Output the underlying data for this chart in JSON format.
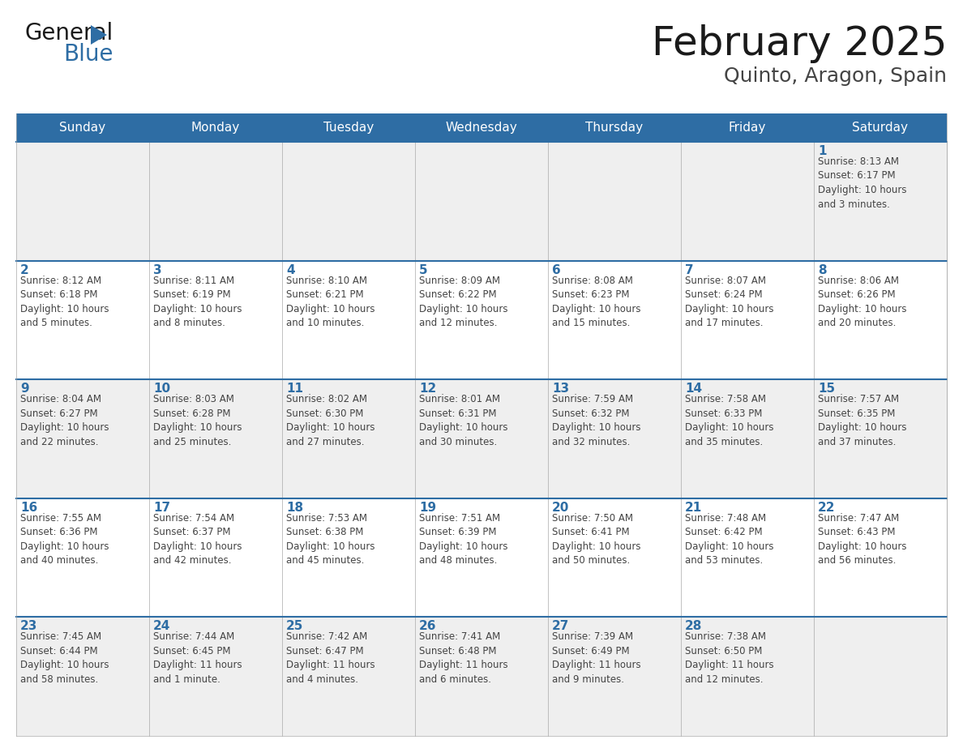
{
  "title": "February 2025",
  "subtitle": "Quinto, Aragon, Spain",
  "header_bg": "#2E6DA4",
  "header_text": "#FFFFFF",
  "cell_bg_odd": "#EFEFEF",
  "cell_bg_even": "#FFFFFF",
  "border_color": "#2E6DA4",
  "cell_border_color": "#AAAAAA",
  "day_names": [
    "Sunday",
    "Monday",
    "Tuesday",
    "Wednesday",
    "Thursday",
    "Friday",
    "Saturday"
  ],
  "title_color": "#1A1A1A",
  "subtitle_color": "#444444",
  "day_number_color": "#2E6DA4",
  "cell_text_color": "#444444",
  "logo_general_color": "#1A1A1A",
  "logo_blue_color": "#2E6DA4",
  "logo_triangle_color": "#2E6DA4",
  "weeks": [
    [
      {
        "day": null,
        "text": ""
      },
      {
        "day": null,
        "text": ""
      },
      {
        "day": null,
        "text": ""
      },
      {
        "day": null,
        "text": ""
      },
      {
        "day": null,
        "text": ""
      },
      {
        "day": null,
        "text": ""
      },
      {
        "day": 1,
        "text": "Sunrise: 8:13 AM\nSunset: 6:17 PM\nDaylight: 10 hours\nand 3 minutes."
      }
    ],
    [
      {
        "day": 2,
        "text": "Sunrise: 8:12 AM\nSunset: 6:18 PM\nDaylight: 10 hours\nand 5 minutes."
      },
      {
        "day": 3,
        "text": "Sunrise: 8:11 AM\nSunset: 6:19 PM\nDaylight: 10 hours\nand 8 minutes."
      },
      {
        "day": 4,
        "text": "Sunrise: 8:10 AM\nSunset: 6:21 PM\nDaylight: 10 hours\nand 10 minutes."
      },
      {
        "day": 5,
        "text": "Sunrise: 8:09 AM\nSunset: 6:22 PM\nDaylight: 10 hours\nand 12 minutes."
      },
      {
        "day": 6,
        "text": "Sunrise: 8:08 AM\nSunset: 6:23 PM\nDaylight: 10 hours\nand 15 minutes."
      },
      {
        "day": 7,
        "text": "Sunrise: 8:07 AM\nSunset: 6:24 PM\nDaylight: 10 hours\nand 17 minutes."
      },
      {
        "day": 8,
        "text": "Sunrise: 8:06 AM\nSunset: 6:26 PM\nDaylight: 10 hours\nand 20 minutes."
      }
    ],
    [
      {
        "day": 9,
        "text": "Sunrise: 8:04 AM\nSunset: 6:27 PM\nDaylight: 10 hours\nand 22 minutes."
      },
      {
        "day": 10,
        "text": "Sunrise: 8:03 AM\nSunset: 6:28 PM\nDaylight: 10 hours\nand 25 minutes."
      },
      {
        "day": 11,
        "text": "Sunrise: 8:02 AM\nSunset: 6:30 PM\nDaylight: 10 hours\nand 27 minutes."
      },
      {
        "day": 12,
        "text": "Sunrise: 8:01 AM\nSunset: 6:31 PM\nDaylight: 10 hours\nand 30 minutes."
      },
      {
        "day": 13,
        "text": "Sunrise: 7:59 AM\nSunset: 6:32 PM\nDaylight: 10 hours\nand 32 minutes."
      },
      {
        "day": 14,
        "text": "Sunrise: 7:58 AM\nSunset: 6:33 PM\nDaylight: 10 hours\nand 35 minutes."
      },
      {
        "day": 15,
        "text": "Sunrise: 7:57 AM\nSunset: 6:35 PM\nDaylight: 10 hours\nand 37 minutes."
      }
    ],
    [
      {
        "day": 16,
        "text": "Sunrise: 7:55 AM\nSunset: 6:36 PM\nDaylight: 10 hours\nand 40 minutes."
      },
      {
        "day": 17,
        "text": "Sunrise: 7:54 AM\nSunset: 6:37 PM\nDaylight: 10 hours\nand 42 minutes."
      },
      {
        "day": 18,
        "text": "Sunrise: 7:53 AM\nSunset: 6:38 PM\nDaylight: 10 hours\nand 45 minutes."
      },
      {
        "day": 19,
        "text": "Sunrise: 7:51 AM\nSunset: 6:39 PM\nDaylight: 10 hours\nand 48 minutes."
      },
      {
        "day": 20,
        "text": "Sunrise: 7:50 AM\nSunset: 6:41 PM\nDaylight: 10 hours\nand 50 minutes."
      },
      {
        "day": 21,
        "text": "Sunrise: 7:48 AM\nSunset: 6:42 PM\nDaylight: 10 hours\nand 53 minutes."
      },
      {
        "day": 22,
        "text": "Sunrise: 7:47 AM\nSunset: 6:43 PM\nDaylight: 10 hours\nand 56 minutes."
      }
    ],
    [
      {
        "day": 23,
        "text": "Sunrise: 7:45 AM\nSunset: 6:44 PM\nDaylight: 10 hours\nand 58 minutes."
      },
      {
        "day": 24,
        "text": "Sunrise: 7:44 AM\nSunset: 6:45 PM\nDaylight: 11 hours\nand 1 minute."
      },
      {
        "day": 25,
        "text": "Sunrise: 7:42 AM\nSunset: 6:47 PM\nDaylight: 11 hours\nand 4 minutes."
      },
      {
        "day": 26,
        "text": "Sunrise: 7:41 AM\nSunset: 6:48 PM\nDaylight: 11 hours\nand 6 minutes."
      },
      {
        "day": 27,
        "text": "Sunrise: 7:39 AM\nSunset: 6:49 PM\nDaylight: 11 hours\nand 9 minutes."
      },
      {
        "day": 28,
        "text": "Sunrise: 7:38 AM\nSunset: 6:50 PM\nDaylight: 11 hours\nand 12 minutes."
      },
      {
        "day": null,
        "text": ""
      }
    ]
  ]
}
